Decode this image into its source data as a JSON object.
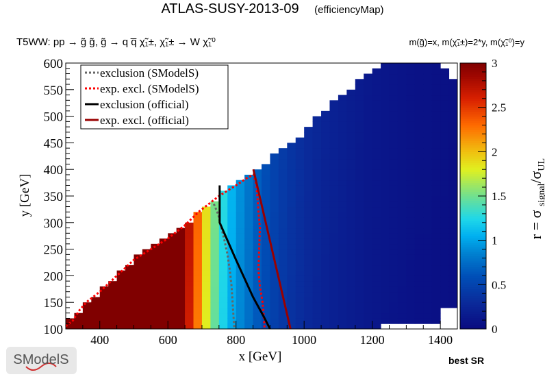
{
  "title": "ATLAS-SUSY-2013-09",
  "subtitle": "(efficiencyMap)",
  "process_label": "T5WW: pp → g̃ g̃, g̃ → q q̅ χ̃₁±, χ̃₁± → W χ̃₁⁰",
  "mass_label": "m(g̃)=x, m(χ̃₁±)=2*y, m(χ̃₁⁰)=y",
  "best_sr_label": "best SR",
  "logo_text": "SModelS",
  "chart_data": {
    "type": "heatmap",
    "xlabel": "x [GeV]",
    "ylabel": "y [GeV]",
    "zlabel": "r = σsignal/σUL",
    "xlim": [
      300,
      1450
    ],
    "ylim": [
      100,
      600
    ],
    "zlim": [
      0,
      3
    ],
    "xticks": [
      400,
      600,
      800,
      1000,
      1200,
      1400
    ],
    "yticks": [
      100,
      150,
      200,
      250,
      300,
      350,
      400,
      450,
      500,
      550,
      600
    ],
    "zticks": [
      0,
      0.5,
      1,
      1.5,
      2,
      2.5,
      3
    ],
    "x_bin_start": 300,
    "x_bin_width": 25,
    "y_bin_width": 10,
    "r_by_x_bin": [
      3,
      3,
      3,
      3,
      3,
      3,
      3,
      3,
      3,
      3,
      3,
      3,
      3,
      3,
      2.7,
      2.3,
      1.85,
      1.5,
      1.25,
      1.05,
      0.9,
      0.78,
      0.66,
      0.56,
      0.48,
      0.42,
      0.37,
      0.33,
      0.29,
      0.26,
      0.23,
      0.21,
      0.19,
      0.17,
      0.15,
      0.13,
      0.12,
      0.11,
      0.1,
      0.09,
      0.08,
      0.07,
      0.07,
      0.06,
      0.06,
      0.05
    ],
    "upper_boundary": [
      [
        300,
        112
      ],
      [
        325,
        120
      ],
      [
        350,
        140
      ],
      [
        400,
        170
      ],
      [
        450,
        200
      ],
      [
        500,
        230
      ],
      [
        550,
        250
      ],
      [
        600,
        270
      ],
      [
        650,
        295
      ],
      [
        700,
        325
      ],
      [
        750,
        350
      ],
      [
        800,
        370
      ],
      [
        850,
        395
      ],
      [
        900,
        420
      ],
      [
        950,
        445
      ],
      [
        1000,
        470
      ],
      [
        1050,
        505
      ],
      [
        1100,
        535
      ],
      [
        1150,
        560
      ],
      [
        1200,
        580
      ],
      [
        1250,
        600
      ],
      [
        1450,
        600
      ]
    ],
    "empty_regions": [
      {
        "x": [
          1400,
          1450
        ],
        "y": [
          590,
          600
        ]
      },
      {
        "x": [
          1425,
          1450
        ],
        "y": [
          570,
          600
        ]
      },
      {
        "x": [
          1225,
          1450
        ],
        "y": [
          100,
          110
        ]
      },
      {
        "x": [
          1400,
          1450
        ],
        "y": [
          100,
          140
        ]
      }
    ],
    "legend_position": "top-left",
    "series": [
      {
        "name": "exclusion (SModelS)",
        "color": "#666666",
        "style": "dotted",
        "points": [
          [
            735,
            335
          ],
          [
            748,
            315
          ],
          [
            755,
            295
          ],
          [
            765,
            270
          ],
          [
            775,
            240
          ],
          [
            782,
            210
          ],
          [
            787,
            180
          ],
          [
            790,
            150
          ],
          [
            793,
            120
          ],
          [
            795,
            100
          ]
        ]
      },
      {
        "name": "exp. excl. (SModelS)",
        "color": "#ff0000",
        "style": "dotted",
        "points": [
          [
            300,
            105
          ],
          [
            320,
            115
          ],
          [
            340,
            135
          ],
          [
            360,
            150
          ],
          [
            400,
            170
          ],
          [
            450,
            200
          ],
          [
            500,
            230
          ],
          [
            550,
            250
          ],
          [
            600,
            270
          ],
          [
            650,
            295
          ],
          [
            690,
            320
          ],
          [
            720,
            335
          ],
          [
            750,
            350
          ],
          [
            800,
            370
          ],
          [
            835,
            385
          ],
          [
            852,
            390
          ],
          [
            860,
            370
          ],
          [
            865,
            330
          ],
          [
            870,
            290
          ],
          [
            868,
            250
          ],
          [
            866,
            210
          ],
          [
            870,
            180
          ],
          [
            878,
            150
          ],
          [
            882,
            120
          ],
          [
            884,
            100
          ]
        ]
      },
      {
        "name": "exclusion (official)",
        "color": "#000000",
        "style": "solid",
        "points": [
          [
            752,
            370
          ],
          [
            752,
            300
          ],
          [
            800,
            230
          ],
          [
            850,
            160
          ],
          [
            880,
            125
          ],
          [
            900,
            100
          ]
        ]
      },
      {
        "name": "exp. excl. (official)",
        "color": "#990000",
        "style": "solid",
        "points": [
          [
            851,
            400
          ],
          [
            960,
            100
          ]
        ]
      }
    ],
    "colorscale": [
      [
        0,
        "#0a0a80"
      ],
      [
        0.3,
        "#0a2a9a"
      ],
      [
        0.6,
        "#0050b8"
      ],
      [
        0.85,
        "#0080d0"
      ],
      [
        1.05,
        "#00b0f0"
      ],
      [
        1.25,
        "#20d8e8"
      ],
      [
        1.5,
        "#70e090"
      ],
      [
        1.8,
        "#e0f020"
      ],
      [
        2.0,
        "#f0c010"
      ],
      [
        2.3,
        "#ff6a00"
      ],
      [
        2.6,
        "#d82000"
      ],
      [
        2.85,
        "#a00800"
      ],
      [
        3,
        "#800000"
      ]
    ]
  }
}
